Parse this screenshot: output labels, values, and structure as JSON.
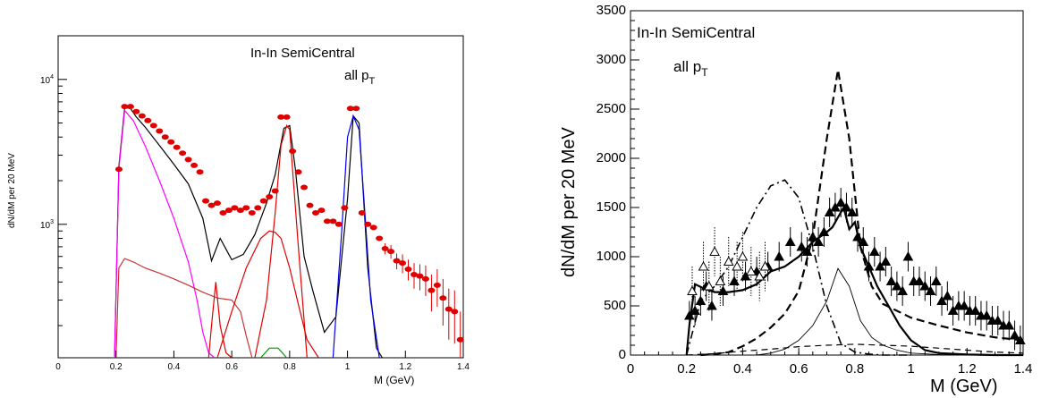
{
  "chart_data": [
    {
      "type": "line",
      "title": "In-In SemiCentral",
      "subtitle": "all p",
      "subtitle_sub": "T",
      "xlabel": "M (GeV)",
      "ylabel": "dN/dM per 20 MeV",
      "xlim": [
        0,
        1.4
      ],
      "ylim": [
        120,
        20000
      ],
      "yscale": "log",
      "grid": false,
      "x_ticks": [
        0,
        0.2,
        0.4,
        0.6,
        0.8,
        1,
        1.2,
        1.4
      ],
      "x_tick_labels": [
        "0",
        "0.2",
        "0.4",
        "0.6",
        "0.8",
        "1",
        "1.2",
        "1.4"
      ],
      "y_ticks": [
        1000,
        10000
      ],
      "y_tick_labels": [
        {
          "base": "10",
          "exp": "3"
        },
        {
          "base": "10",
          "exp": "4"
        }
      ],
      "colors": {
        "data": "#e00000",
        "total": "#000000",
        "eta_dalitz": "#ff00ff",
        "omega": "#e00000",
        "thin": "#cc3333",
        "phi": "#0000ee",
        "green": "#009900"
      },
      "series": [
        {
          "style": "points",
          "color": "#e00000",
          "x": [
            0.21,
            0.23,
            0.25,
            0.27,
            0.29,
            0.31,
            0.33,
            0.35,
            0.37,
            0.39,
            0.41,
            0.43,
            0.45,
            0.47,
            0.49,
            0.51,
            0.53,
            0.55,
            0.57,
            0.59,
            0.61,
            0.63,
            0.65,
            0.67,
            0.69,
            0.71,
            0.73,
            0.75,
            0.77,
            0.79,
            0.81,
            0.83,
            0.85,
            0.87,
            0.89,
            0.91,
            0.93,
            0.95,
            0.97,
            0.99,
            1.01,
            1.03,
            1.05,
            1.07,
            1.09,
            1.11,
            1.13,
            1.15,
            1.17,
            1.19,
            1.21,
            1.23,
            1.25,
            1.27,
            1.29,
            1.31,
            1.33,
            1.35,
            1.37,
            1.39
          ],
          "y": [
            2400,
            6500,
            6500,
            6000,
            5600,
            5200,
            4800,
            4400,
            4000,
            3700,
            3400,
            3100,
            2800,
            2550,
            2300,
            1450,
            1350,
            1400,
            1200,
            1250,
            1300,
            1250,
            1300,
            1200,
            1300,
            1450,
            1550,
            1700,
            5500,
            5500,
            3200,
            2300,
            1800,
            1350,
            1200,
            1250,
            1050,
            1050,
            1000,
            1300,
            6300,
            6300,
            1200,
            1000,
            950,
            800,
            680,
            650,
            560,
            540,
            490,
            450,
            440,
            420,
            350,
            380,
            310,
            260,
            250,
            160
          ],
          "yerr": [
            0,
            0,
            0,
            0,
            0,
            0,
            0,
            0,
            0,
            0,
            0,
            0,
            0,
            0,
            0,
            0,
            0,
            0,
            0,
            0,
            0,
            0,
            0,
            0,
            0,
            0,
            0,
            0,
            0,
            0,
            0,
            0,
            0,
            0,
            0,
            0,
            0,
            0,
            0,
            0,
            0,
            0,
            0,
            0,
            0,
            0,
            60,
            70,
            70,
            80,
            80,
            90,
            90,
            100,
            100,
            110,
            110,
            100,
            100,
            90
          ]
        },
        {
          "style": "solid",
          "color": "#000000",
          "x": [
            0.195,
            0.21,
            0.23,
            0.25,
            0.27,
            0.3,
            0.35,
            0.4,
            0.45,
            0.5,
            0.53,
            0.56,
            0.6,
            0.64,
            0.68,
            0.72,
            0.75,
            0.78,
            0.8,
            0.82,
            0.85,
            0.88,
            0.92,
            0.96,
            1.0,
            1.02,
            1.04,
            1.07,
            1.1,
            1.12
          ],
          "y": [
            120,
            2500,
            6400,
            6300,
            5500,
            4700,
            3500,
            2600,
            1900,
            1100,
            560,
            800,
            570,
            620,
            850,
            1400,
            2200,
            4600,
            4800,
            2400,
            600,
            350,
            180,
            230,
            1500,
            5600,
            5000,
            500,
            140,
            120
          ]
        },
        {
          "style": "solid",
          "color": "#ff00ff",
          "x": [
            0.195,
            0.21,
            0.23,
            0.26,
            0.3,
            0.35,
            0.4,
            0.45,
            0.48,
            0.5,
            0.52,
            0.54
          ],
          "y": [
            120,
            2400,
            6100,
            5200,
            3500,
            2000,
            1100,
            550,
            300,
            180,
            130,
            120
          ]
        },
        {
          "style": "solid",
          "color": "#cc3333",
          "x": [
            0.2,
            0.21,
            0.23,
            0.26,
            0.3,
            0.35,
            0.4,
            0.45,
            0.5,
            0.55,
            0.6,
            0.63,
            0.65,
            0.67
          ],
          "y": [
            120,
            500,
            580,
            550,
            500,
            460,
            420,
            380,
            340,
            310,
            300,
            250,
            170,
            120
          ]
        },
        {
          "style": "solid",
          "color": "#e00000",
          "x": [
            0.52,
            0.53,
            0.545,
            0.56,
            0.58,
            0.6
          ],
          "y": [
            120,
            200,
            400,
            200,
            130,
            120
          ]
        },
        {
          "style": "solid",
          "color": "#e00000",
          "x": [
            0.55,
            0.6,
            0.65,
            0.7,
            0.73,
            0.75,
            0.77,
            0.8,
            0.83,
            0.86,
            0.9
          ],
          "y": [
            120,
            250,
            500,
            800,
            900,
            880,
            800,
            500,
            280,
            160,
            120
          ]
        },
        {
          "style": "solid",
          "color": "#e00000",
          "x": [
            0.68,
            0.72,
            0.75,
            0.77,
            0.79,
            0.8,
            0.81,
            0.83,
            0.86
          ],
          "y": [
            120,
            300,
            1200,
            3500,
            4800,
            4500,
            2400,
            700,
            120
          ]
        },
        {
          "style": "solid",
          "color": "#0000ee",
          "x": [
            0.95,
            0.98,
            1.0,
            1.02,
            1.04,
            1.06,
            1.08,
            1.11
          ],
          "y": [
            120,
            900,
            4000,
            5600,
            4500,
            1200,
            300,
            120
          ]
        },
        {
          "style": "solid",
          "color": "#009900",
          "x": [
            0.7,
            0.73,
            0.76,
            0.79
          ],
          "y": [
            120,
            140,
            140,
            120
          ]
        }
      ]
    },
    {
      "type": "line",
      "title": "In-In SemiCentral",
      "subtitle": "all p",
      "subtitle_sub": "T",
      "xlabel": "M (GeV)",
      "ylabel": "dN/dM per 20 MeV",
      "xlim": [
        0,
        1.4
      ],
      "ylim": [
        0,
        3500
      ],
      "yscale": "linear",
      "grid": false,
      "x_ticks": [
        0,
        0.2,
        0.4,
        0.6,
        0.8,
        1,
        1.2,
        1.4
      ],
      "x_tick_labels": [
        "0",
        "0.2",
        "0.4",
        "0.6",
        "0.8",
        "1",
        "1.2",
        "1.4"
      ],
      "y_ticks": [
        0,
        500,
        1000,
        1500,
        2000,
        2500,
        3000,
        3500
      ],
      "y_tick_labels": [
        "0",
        "500",
        "1000",
        "1500",
        "2000",
        "2500",
        "3000",
        "3500"
      ],
      "series": [
        {
          "style": "points",
          "marker": "filled-triangle",
          "color": "#000000",
          "x": [
            0.21,
            0.23,
            0.25,
            0.27,
            0.29,
            0.33,
            0.37,
            0.41,
            0.45,
            0.49,
            0.53,
            0.57,
            0.61,
            0.63,
            0.65,
            0.67,
            0.69,
            0.71,
            0.73,
            0.75,
            0.77,
            0.79,
            0.81,
            0.83,
            0.85,
            0.87,
            0.89,
            0.91,
            0.93,
            0.95,
            0.97,
            0.99,
            1.01,
            1.03,
            1.05,
            1.07,
            1.09,
            1.11,
            1.13,
            1.15,
            1.17,
            1.19,
            1.21,
            1.23,
            1.25,
            1.27,
            1.29,
            1.31,
            1.33,
            1.35,
            1.37,
            1.39
          ],
          "y": [
            400,
            450,
            550,
            700,
            500,
            650,
            750,
            800,
            850,
            900,
            1000,
            1150,
            1100,
            1050,
            1200,
            1150,
            1250,
            1450,
            1500,
            1550,
            1500,
            1450,
            1200,
            1150,
            900,
            1050,
            900,
            950,
            750,
            700,
            650,
            1000,
            750,
            750,
            700,
            650,
            750,
            550,
            600,
            450,
            500,
            500,
            450,
            450,
            400,
            400,
            350,
            350,
            300,
            300,
            200,
            150
          ],
          "yerr": [
            150,
            150,
            150,
            150,
            150,
            150,
            150,
            150,
            150,
            150,
            150,
            150,
            150,
            150,
            150,
            150,
            150,
            150,
            150,
            150,
            150,
            150,
            150,
            150,
            150,
            150,
            150,
            150,
            150,
            150,
            150,
            150,
            150,
            150,
            150,
            150,
            150,
            150,
            150,
            150,
            150,
            150,
            150,
            150,
            150,
            150,
            150,
            150,
            150,
            150,
            150,
            150
          ]
        },
        {
          "style": "points",
          "marker": "open-triangle",
          "color": "#000000",
          "x": [
            0.22,
            0.26,
            0.28,
            0.3,
            0.32,
            0.35,
            0.38,
            0.4,
            0.43,
            0.46,
            0.48
          ],
          "y": [
            650,
            900,
            700,
            1050,
            750,
            950,
            900,
            1000,
            850,
            800,
            900
          ],
          "yerr": [
            250,
            250,
            250,
            250,
            250,
            250,
            250,
            250,
            250,
            250,
            250
          ]
        },
        {
          "style": "solid-thick",
          "color": "#000000",
          "x": [
            0.2,
            0.21,
            0.23,
            0.26,
            0.3,
            0.35,
            0.4,
            0.45,
            0.5,
            0.55,
            0.6,
            0.65,
            0.7,
            0.72,
            0.74,
            0.76,
            0.78,
            0.8,
            0.82,
            0.85,
            0.88,
            0.92,
            0.96,
            1.0,
            1.05,
            1.1,
            1.2,
            1.3,
            1.4
          ],
          "y": [
            0,
            300,
            720,
            680,
            640,
            640,
            660,
            720,
            850,
            900,
            1000,
            1150,
            1250,
            1300,
            1400,
            1500,
            1280,
            1350,
            1100,
            900,
            700,
            500,
            300,
            150,
            50,
            20,
            5,
            0,
            0
          ]
        },
        {
          "style": "solid-thin",
          "color": "#000000",
          "x": [
            0.45,
            0.5,
            0.55,
            0.6,
            0.65,
            0.7,
            0.74,
            0.78,
            0.82,
            0.86,
            0.9,
            0.95,
            1.0,
            1.1,
            1.2
          ],
          "y": [
            0,
            20,
            60,
            150,
            300,
            550,
            880,
            700,
            350,
            180,
            100,
            50,
            20,
            5,
            0
          ]
        },
        {
          "style": "dash-dot",
          "color": "#000000",
          "x": [
            0.2,
            0.25,
            0.3,
            0.35,
            0.4,
            0.45,
            0.5,
            0.55,
            0.6,
            0.65,
            0.7,
            0.75,
            0.8,
            0.85,
            0.9,
            1.0
          ],
          "y": [
            0,
            550,
            700,
            900,
            1200,
            1500,
            1720,
            1780,
            1600,
            1100,
            500,
            120,
            30,
            10,
            0,
            0
          ]
        },
        {
          "style": "dashed",
          "color": "#000000",
          "x": [
            0.25,
            0.3,
            0.35,
            0.4,
            0.45,
            0.5,
            0.55,
            0.6,
            0.65,
            0.7,
            0.74,
            0.78,
            0.82,
            0.86,
            0.9,
            1.0,
            1.1,
            1.2,
            1.3,
            1.4
          ],
          "y": [
            0,
            10,
            30,
            90,
            170,
            280,
            420,
            650,
            1200,
            2200,
            2900,
            2200,
            1100,
            700,
            520,
            380,
            300,
            230,
            180,
            150
          ]
        },
        {
          "style": "dashed-thin",
          "color": "#000000",
          "x": [
            0.2,
            0.3,
            0.4,
            0.5,
            0.6,
            0.7,
            0.8,
            0.9,
            1.0,
            1.1,
            1.2,
            1.3,
            1.4
          ],
          "y": [
            0,
            15,
            40,
            60,
            85,
            100,
            110,
            100,
            90,
            70,
            50,
            30,
            20
          ]
        }
      ]
    }
  ]
}
